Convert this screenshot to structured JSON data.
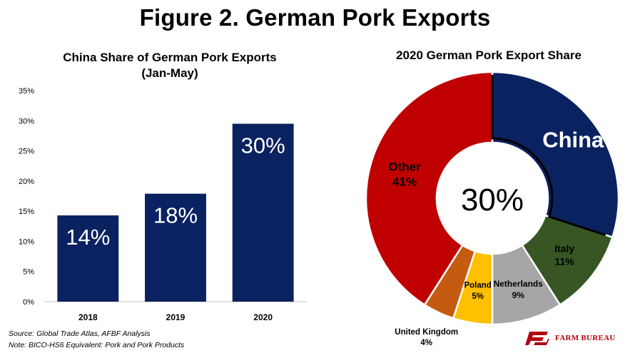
{
  "figure_title": "Figure 2. German Pork Exports",
  "chart_data": [
    {
      "type": "bar",
      "title": "China Share of German Pork Exports (Jan-May)",
      "title_lines": [
        "China Share of German Pork Exports",
        "(Jan-May)"
      ],
      "categories": [
        "2018",
        "2019",
        "2020"
      ],
      "values": [
        14.3,
        17.9,
        29.5
      ],
      "data_labels": [
        "14%",
        "18%",
        "30%"
      ],
      "ylim": [
        0,
        35
      ],
      "yticks": [
        "0%",
        "5%",
        "10%",
        "15%",
        "20%",
        "25%",
        "30%",
        "35%"
      ],
      "ytick_values": [
        0,
        5,
        10,
        15,
        20,
        25,
        30,
        35
      ],
      "color": "#0b2260",
      "grid": false
    },
    {
      "type": "pie",
      "title": "2020 German Pork Export Share",
      "center_label": "30%",
      "slices": [
        {
          "name": "China",
          "value": 30,
          "label": "China",
          "color": "#0b2260"
        },
        {
          "name": "Italy",
          "value": 11,
          "label": "Italy",
          "pct_label": "11%",
          "color": "#375623"
        },
        {
          "name": "Netherlands",
          "value": 9,
          "label": "Netherlands",
          "pct_label": "9%",
          "color": "#a6a6a6"
        },
        {
          "name": "Poland",
          "value": 5,
          "label": "Poland",
          "pct_label": "5%",
          "color": "#ffc000"
        },
        {
          "name": "United Kingdom",
          "value": 4,
          "label": "United Kingdom",
          "pct_label": "4%",
          "color": "#c55a11"
        },
        {
          "name": "Other",
          "value": 41,
          "label": "Other",
          "pct_label": "41%",
          "color": "#c00000"
        }
      ]
    }
  ],
  "footnotes": {
    "source": "Source:  Global Trade Atlas, AFBF Analysis",
    "note": "Note: BICO-HS6 Equivalent: Pork and Pork Products"
  },
  "logo": {
    "text": "FARM BUREAU",
    "mark": "FB",
    "color": "#b1060f"
  }
}
